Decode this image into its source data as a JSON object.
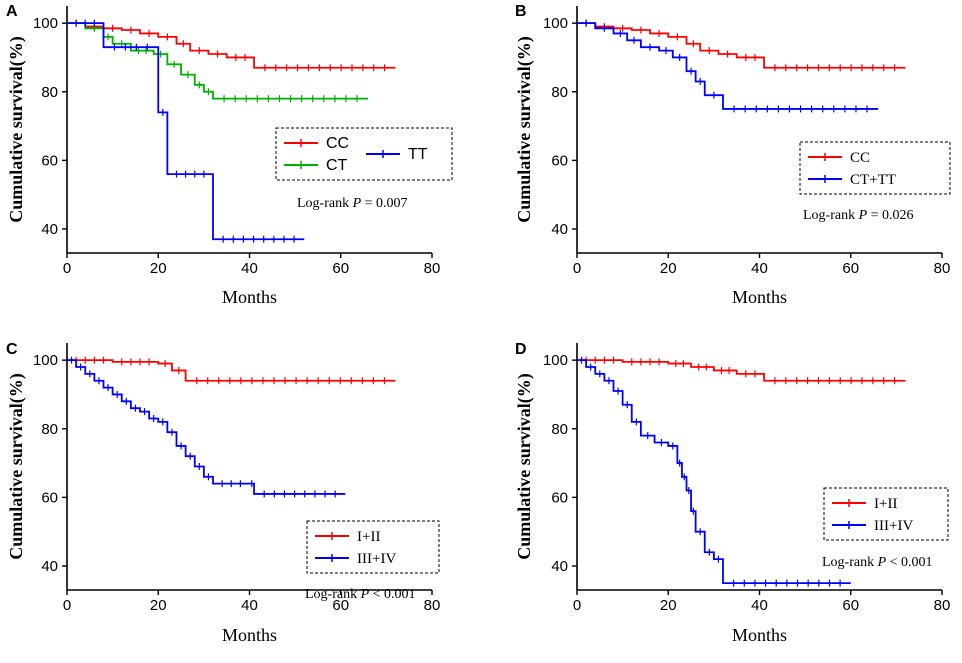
{
  "chart_data": [
    {
      "panel": "A",
      "type": "line",
      "title": "",
      "xlabel": "Months",
      "ylabel": "Cumulative survival(%)",
      "xlim": [
        0,
        80
      ],
      "ylim": [
        33,
        105
      ],
      "xticks": [
        0,
        20,
        40,
        60,
        80
      ],
      "yticks": [
        40,
        60,
        80,
        100
      ],
      "legend": {
        "placement": "center-right",
        "columns": 2
      },
      "annotation": {
        "prefix": "Log-rank ",
        "p": "P",
        "rest": " = 0.007"
      },
      "series": [
        {
          "name": "CC",
          "color": "#ff0000",
          "x": [
            0,
            4,
            8,
            12,
            16,
            20,
            24,
            27,
            31,
            35,
            41,
            72
          ],
          "y": [
            100,
            99,
            98.5,
            98,
            97,
            96,
            94,
            92,
            91,
            90,
            87,
            87
          ]
        },
        {
          "name": "CT",
          "color": "#00b000",
          "x": [
            0,
            4,
            8,
            10,
            14,
            19,
            22,
            25,
            28,
            30,
            32,
            66
          ],
          "y": [
            100,
            98.5,
            96,
            94,
            92,
            91,
            88,
            85,
            82,
            80,
            78,
            78
          ]
        },
        {
          "name": "TT",
          "color": "#0000ff",
          "x": [
            0,
            8,
            20,
            22,
            32,
            52
          ],
          "y": [
            100,
            93,
            74,
            56,
            37,
            37
          ]
        }
      ]
    },
    {
      "panel": "B",
      "type": "line",
      "title": "",
      "xlabel": "Months",
      "ylabel": "Cumulative survival(%)",
      "xlim": [
        0,
        80
      ],
      "ylim": [
        33,
        105
      ],
      "xticks": [
        0,
        20,
        40,
        60,
        80
      ],
      "yticks": [
        40,
        60,
        80,
        100
      ],
      "legend": {
        "placement": "center-right",
        "columns": 1
      },
      "annotation": {
        "prefix": "Log-rank ",
        "p": "P",
        "rest": " = 0.026"
      },
      "series": [
        {
          "name": "CC",
          "color": "#ff0000",
          "x": [
            0,
            4,
            8,
            12,
            16,
            20,
            24,
            27,
            31,
            35,
            41,
            72
          ],
          "y": [
            100,
            99,
            98.5,
            98,
            97,
            96,
            94,
            92,
            91,
            90,
            87,
            87
          ]
        },
        {
          "name": "CT+TT",
          "color": "#0000ff",
          "x": [
            0,
            4,
            8,
            11,
            14,
            18,
            21,
            24,
            26,
            28,
            32,
            66
          ],
          "y": [
            100,
            98.5,
            97,
            95,
            93,
            92,
            90,
            86,
            83,
            79,
            75,
            75
          ]
        }
      ]
    },
    {
      "panel": "C",
      "type": "line",
      "title": "",
      "xlabel": "Months",
      "ylabel": "Cumulative survival(%)",
      "xlim": [
        0,
        80
      ],
      "ylim": [
        33,
        105
      ],
      "xticks": [
        0,
        20,
        40,
        60,
        80
      ],
      "yticks": [
        40,
        60,
        80,
        100
      ],
      "legend": {
        "placement": "center-right",
        "columns": 1
      },
      "annotation": {
        "prefix": "Log-rank ",
        "p": "P",
        "rest": " < 0.001"
      },
      "series": [
        {
          "name": "I+II",
          "color": "#ff0000",
          "x": [
            0,
            10,
            20,
            23,
            26,
            72
          ],
          "y": [
            100,
            99.5,
            99,
            97,
            94,
            94
          ]
        },
        {
          "name": "III+IV",
          "color": "#0000ff",
          "x": [
            0,
            2,
            4,
            6,
            8,
            10,
            12,
            14,
            16,
            18,
            20,
            22,
            24,
            26,
            28,
            30,
            32,
            40,
            41,
            61
          ],
          "y": [
            100,
            98,
            96,
            94,
            92,
            90,
            88,
            86,
            85,
            83,
            82,
            79,
            75,
            72,
            69,
            66,
            64,
            64,
            61,
            61
          ]
        }
      ]
    },
    {
      "panel": "D",
      "type": "line",
      "title": "",
      "xlabel": "Months",
      "ylabel": "Cumulative survival(%)",
      "xlim": [
        0,
        80
      ],
      "ylim": [
        33,
        105
      ],
      "xticks": [
        0,
        20,
        40,
        60,
        80
      ],
      "yticks": [
        40,
        60,
        80,
        100
      ],
      "legend": {
        "placement": "center-right",
        "columns": 1
      },
      "annotation": {
        "prefix": "Log-rank ",
        "p": "P",
        "rest": " < 0.001"
      },
      "series": [
        {
          "name": "I+II",
          "color": "#ff0000",
          "x": [
            0,
            10,
            20,
            25,
            30,
            35,
            41,
            72
          ],
          "y": [
            100,
            99.5,
            99,
            98,
            97,
            96,
            94,
            94
          ]
        },
        {
          "name": "III+IV",
          "color": "#0000ff",
          "x": [
            0,
            2,
            4,
            6,
            8,
            10,
            12,
            14,
            17,
            20,
            22,
            23,
            24,
            25,
            26,
            28,
            30,
            32,
            60
          ],
          "y": [
            100,
            98,
            96,
            94,
            91,
            87,
            82,
            78,
            76,
            75,
            70,
            66,
            62,
            56,
            50,
            44,
            42,
            35,
            35
          ]
        }
      ]
    }
  ]
}
